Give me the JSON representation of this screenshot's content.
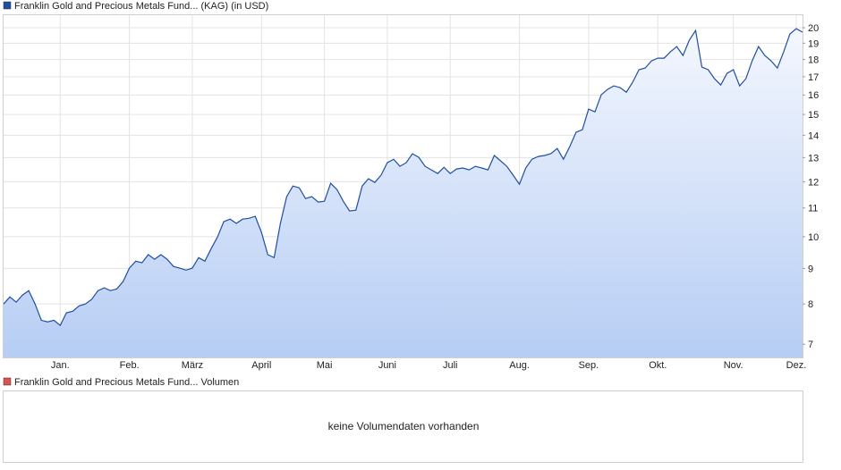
{
  "chart_data": [
    {
      "type": "line",
      "log_scale": true,
      "grid": true,
      "ylim": [
        6.7,
        20.85
      ],
      "yticks": [
        7,
        8,
        9,
        10,
        11,
        12,
        13,
        14,
        15,
        16,
        17,
        18,
        19,
        20
      ],
      "categories": [
        null,
        null,
        null,
        null,
        null,
        null,
        null,
        null,
        null,
        "Jan.",
        null,
        null,
        null,
        null,
        null,
        null,
        null,
        null,
        null,
        null,
        "Feb.",
        null,
        null,
        null,
        null,
        null,
        null,
        null,
        null,
        null,
        "März",
        null,
        null,
        null,
        null,
        null,
        null,
        null,
        null,
        null,
        null,
        "April",
        null,
        null,
        null,
        null,
        null,
        null,
        null,
        null,
        null,
        "Mai",
        null,
        null,
        null,
        null,
        null,
        null,
        null,
        null,
        null,
        "Juni",
        null,
        null,
        null,
        null,
        null,
        null,
        null,
        null,
        null,
        "Juli",
        null,
        null,
        null,
        null,
        null,
        null,
        null,
        null,
        null,
        null,
        "Aug.",
        null,
        null,
        null,
        null,
        null,
        null,
        null,
        null,
        null,
        null,
        "Sep.",
        null,
        null,
        null,
        null,
        null,
        null,
        null,
        null,
        null,
        null,
        "Okt.",
        null,
        null,
        null,
        null,
        null,
        null,
        null,
        null,
        null,
        null,
        null,
        "Nov.",
        null,
        null,
        null,
        null,
        null,
        null,
        null,
        null,
        null,
        "Dez.",
        null
      ],
      "series": [
        {
          "name": "Franklin Gold and Precious Metals Fund... (KAG) (in USD)",
          "color": "#1f4fa0",
          "values": [
            8.0,
            8.19,
            8.05,
            8.24,
            8.36,
            8.0,
            7.58,
            7.54,
            7.58,
            7.45,
            7.77,
            7.81,
            7.95,
            8.0,
            8.12,
            8.36,
            8.44,
            8.36,
            8.41,
            8.62,
            9.01,
            9.22,
            9.17,
            9.42,
            9.28,
            9.42,
            9.28,
            9.06,
            9.01,
            8.95,
            9.01,
            9.33,
            9.22,
            9.61,
            9.99,
            10.51,
            10.6,
            10.45,
            10.6,
            10.63,
            10.7,
            10.14,
            9.42,
            9.33,
            10.45,
            11.42,
            11.83,
            11.76,
            11.35,
            11.42,
            11.22,
            11.25,
            11.94,
            11.69,
            11.25,
            10.89,
            10.92,
            11.83,
            12.12,
            11.97,
            12.26,
            12.78,
            12.93,
            12.63,
            12.78,
            13.17,
            13.01,
            12.63,
            12.48,
            12.33,
            12.59,
            12.33,
            12.52,
            12.56,
            12.48,
            12.63,
            12.56,
            12.48,
            13.09,
            12.86,
            12.63,
            12.26,
            11.9,
            12.56,
            12.93,
            13.05,
            13.09,
            13.17,
            13.4,
            12.93,
            13.48,
            14.14,
            14.26,
            15.27,
            15.13,
            16.01,
            16.3,
            16.49,
            16.4,
            16.15,
            16.69,
            17.4,
            17.5,
            17.92,
            18.08,
            18.08,
            18.46,
            18.79,
            18.24,
            19.19,
            19.82,
            17.55,
            17.4,
            16.89,
            16.54,
            17.19,
            17.4,
            16.49,
            16.89,
            17.92,
            18.79,
            18.24,
            17.92,
            17.5,
            18.46,
            19.59,
            19.94,
            19.71
          ]
        }
      ]
    },
    {
      "type": "volume",
      "series": [
        {
          "name": "Franklin Gold and Precious Metals Fund... Volumen",
          "color": "#d9534f",
          "values": []
        }
      ],
      "message": "keine Volumendaten vorhanden"
    }
  ]
}
